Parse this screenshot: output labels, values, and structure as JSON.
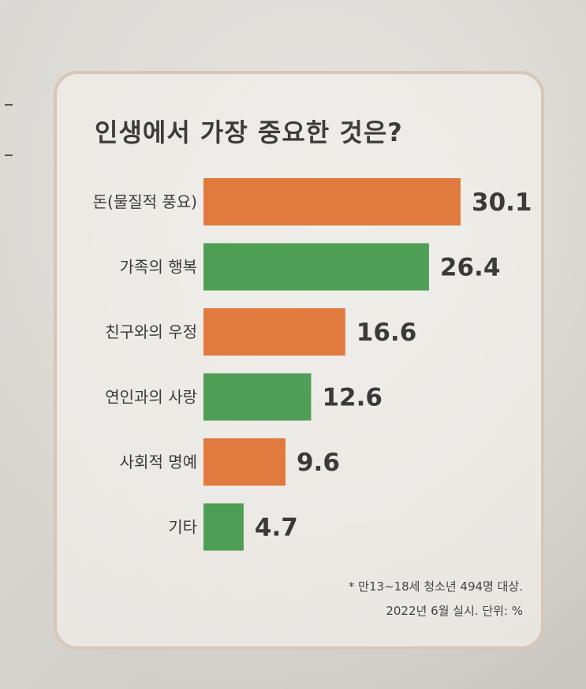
{
  "chart_data": {
    "type": "bar",
    "orientation": "horizontal",
    "title": "인생에서 가장 중요한 것은?",
    "categories": [
      "돈(물질적 풍요)",
      "가족의 행복",
      "친구와의 우정",
      "연인과의 사랑",
      "사회적 명예",
      "기타"
    ],
    "values": [
      30.1,
      26.4,
      16.6,
      12.6,
      9.6,
      4.7
    ],
    "value_labels": [
      "30.1",
      "26.4",
      "16.6",
      "12.6",
      "9.6",
      "4.7"
    ],
    "colors": [
      "#e07a3e",
      "#4f9e56",
      "#e07a3e",
      "#4f9e56",
      "#e07a3e",
      "#4f9e56"
    ],
    "xlim": [
      0,
      30.1
    ],
    "grid": false,
    "legend": "none"
  },
  "notes": {
    "line1": "* 만13~18세 청소년 494명 대상.",
    "line2": "2022년 6월 실시. 단위: %"
  },
  "style": {
    "border_color": "#d9c6b6",
    "orange": "#e07a3e",
    "green": "#4f9e56"
  }
}
